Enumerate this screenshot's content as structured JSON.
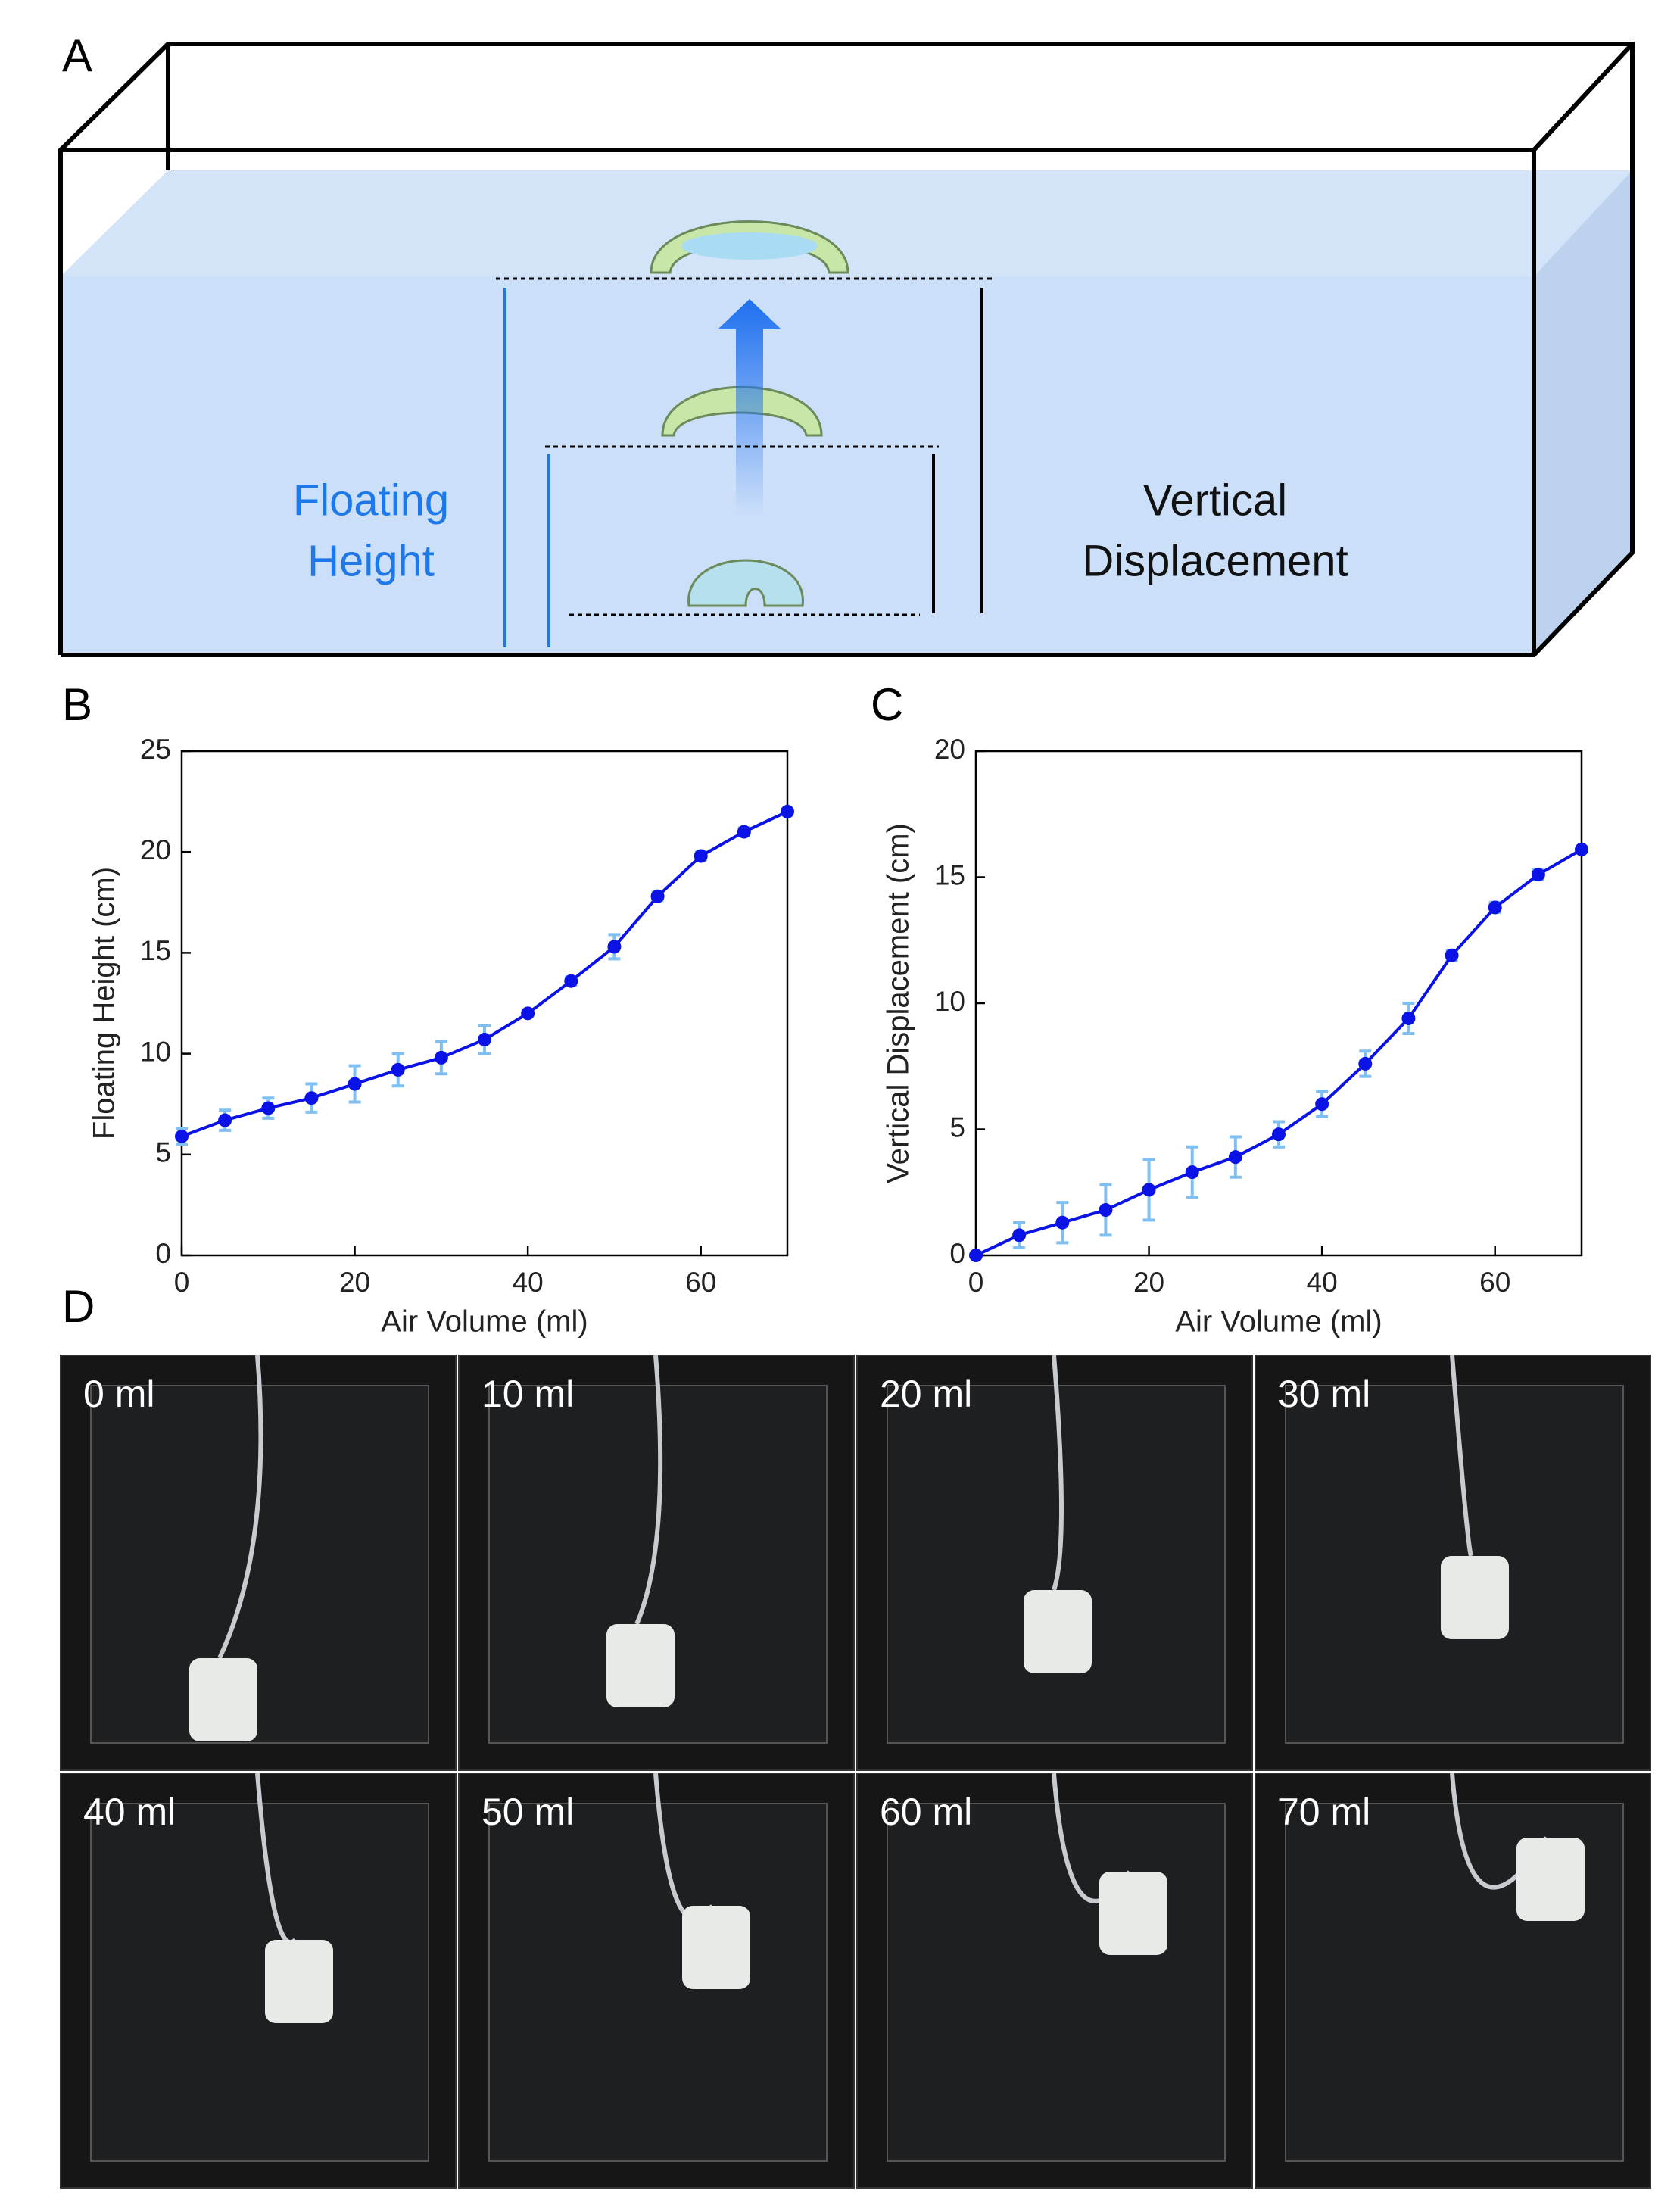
{
  "panel_labels": [
    "A",
    "B",
    "C",
    "D"
  ],
  "diagram": {
    "left_label": [
      "Floating",
      "Height"
    ],
    "right_label": [
      "Vertical",
      "Displacement"
    ]
  },
  "chart_data": [
    {
      "type": "line",
      "xlabel": "Air Volume (ml)",
      "ylabel": "Floating Height (cm)",
      "x": [
        0,
        5,
        10,
        15,
        20,
        25,
        30,
        35,
        40,
        45,
        50,
        55,
        60,
        65,
        70
      ],
      "series": [
        {
          "color": "#0a12e6",
          "error_color": "#7fbff2",
          "values": [
            5.9,
            6.7,
            7.3,
            7.8,
            8.5,
            9.2,
            9.8,
            10.7,
            12.0,
            13.6,
            15.3,
            17.8,
            19.8,
            21.0,
            22.0
          ],
          "errors": [
            0.4,
            0.5,
            0.5,
            0.7,
            0.9,
            0.8,
            0.8,
            0.7,
            0.1,
            0.2,
            0.6,
            0.2,
            0.2,
            0.2,
            0.1
          ]
        }
      ],
      "xlim": [
        0,
        70
      ],
      "xticks": [
        0,
        20,
        40,
        60
      ],
      "ylim": [
        0,
        25
      ],
      "yticks": [
        0,
        5,
        10,
        15,
        20,
        25
      ]
    },
    {
      "type": "line",
      "xlabel": "Air Volume (ml)",
      "ylabel": "Vertical Displacement (cm)",
      "x": [
        0,
        5,
        10,
        15,
        20,
        25,
        30,
        35,
        40,
        45,
        50,
        55,
        60,
        65,
        70
      ],
      "series": [
        {
          "color": "#0a12e6",
          "error_color": "#7fbff2",
          "values": [
            0,
            0.8,
            1.3,
            1.8,
            2.6,
            3.3,
            3.9,
            4.8,
            6.0,
            7.6,
            9.4,
            11.9,
            13.8,
            15.1,
            16.1
          ],
          "errors": [
            0,
            0.5,
            0.8,
            1.0,
            1.2,
            1.0,
            0.8,
            0.5,
            0.5,
            0.5,
            0.6,
            0.2,
            0.2,
            0.2,
            0.1
          ]
        }
      ],
      "xlim": [
        0,
        70
      ],
      "xticks": [
        0,
        20,
        40,
        60
      ],
      "ylim": [
        0,
        20
      ],
      "yticks": [
        0,
        5,
        10,
        15,
        20
      ]
    }
  ],
  "photos": {
    "labels": [
      "0 ml",
      "10 ml",
      "20 ml",
      "30 ml",
      "40 ml",
      "50 ml",
      "60 ml",
      "70 ml"
    ]
  }
}
